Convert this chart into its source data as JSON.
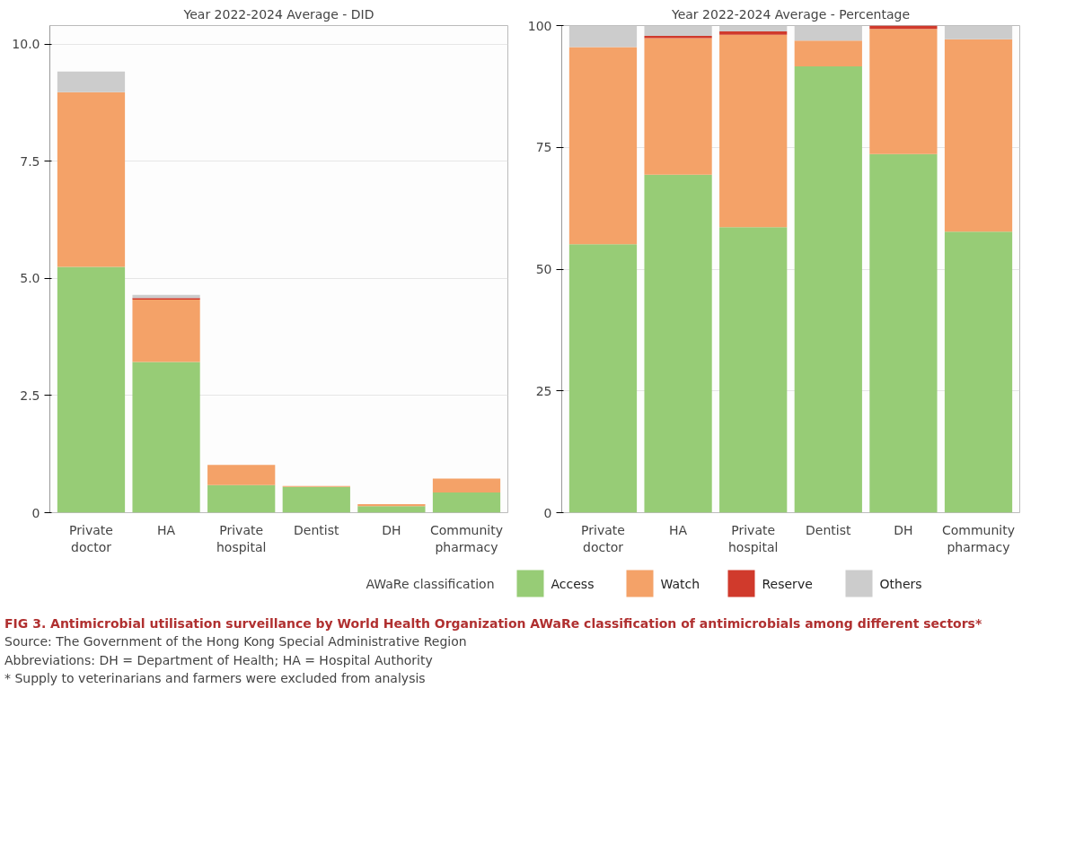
{
  "chart_data": [
    {
      "type": "bar",
      "stacked": true,
      "title": "Year 2022-2024 Average - DID",
      "categories": [
        "Private doctor",
        "HA",
        "Private hospital",
        "Dentist",
        "DH",
        "Community pharmacy"
      ],
      "ylim": [
        0,
        10.4
      ],
      "yticks": [
        {
          "value": 0,
          "label": "0"
        },
        {
          "value": 2.5,
          "label": "2.5"
        },
        {
          "value": 5,
          "label": "5.0"
        },
        {
          "value": 7.5,
          "label": "7.5"
        },
        {
          "value": 10,
          "label": "10.0"
        }
      ],
      "grid": "y",
      "legend": "bottom",
      "series": [
        {
          "name": "Access",
          "color": "#97cc76",
          "values": [
            5.25,
            3.22,
            0.59,
            0.55,
            0.14,
            0.43
          ]
        },
        {
          "name": "Watch",
          "color": "#f4a268",
          "values": [
            3.73,
            1.33,
            0.43,
            0.02,
            0.04,
            0.3
          ]
        },
        {
          "name": "Reserve",
          "color": "#d03a2c",
          "values": [
            0,
            0.03,
            0,
            0,
            0,
            0
          ]
        },
        {
          "name": "Others",
          "color": "#cccccc",
          "values": [
            0.44,
            0.07,
            0,
            0,
            0,
            0
          ]
        }
      ]
    },
    {
      "type": "bar",
      "stacked": true,
      "title": "Year 2022-2024 Average - Percentage",
      "categories": [
        "Private doctor",
        "HA",
        "Private hospital",
        "Dentist",
        "DH",
        "Community pharmacy"
      ],
      "ylim": [
        0,
        100
      ],
      "yticks": [
        0,
        25,
        50,
        75,
        100
      ],
      "grid": "y",
      "legend": "bottom",
      "legend_title": "AWaRe classification",
      "series": [
        {
          "name": "Access",
          "color": "#97cc76",
          "values": [
            55.1,
            69.4,
            58.6,
            91.6,
            73.6,
            57.7
          ]
        },
        {
          "name": "Watch",
          "color": "#f4a268",
          "values": [
            40.5,
            28,
            39.5,
            5.3,
            25.7,
            39.5
          ]
        },
        {
          "name": "Reserve",
          "color": "#d03a2c",
          "values": [
            0,
            0.5,
            0.7,
            0,
            0.7,
            0
          ]
        },
        {
          "name": "Others",
          "color": "#cccccc",
          "values": [
            4.4,
            2.1,
            1.2,
            3.1,
            0,
            2.8
          ]
        }
      ],
      "annotations": [
        "FIG 3. Antimicrobial utilisation surveillance by World Health Organization AWaRe classification of antimicrobials among different sectors*",
        "Source: The Government of the Hong Kong Special Administrative Region",
        "Abbreviations: DH = Department of Health; HA = Hospital Authority",
        "* Supply to veterinarians and farmers were excluded from analysis"
      ]
    }
  ]
}
